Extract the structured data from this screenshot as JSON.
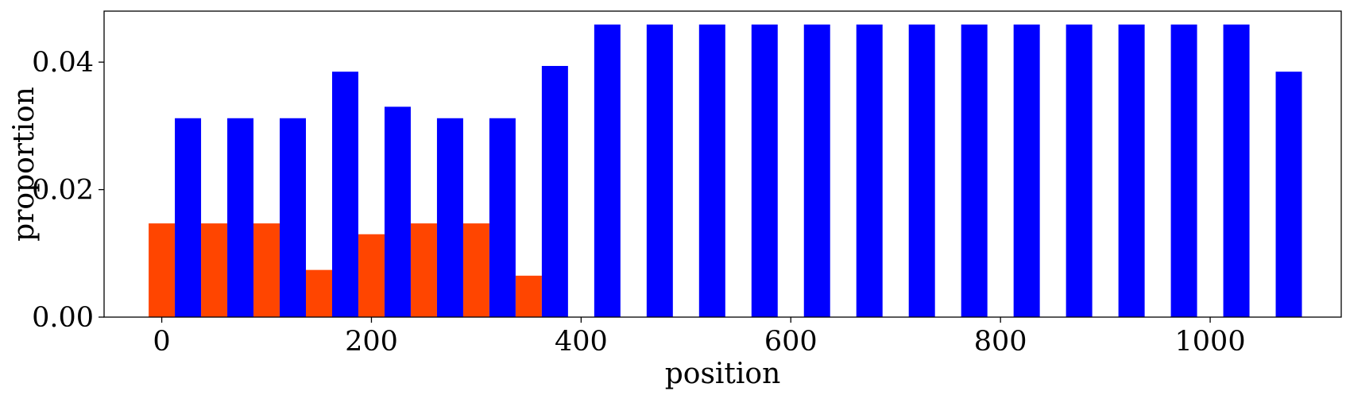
{
  "chart_data": {
    "type": "bar",
    "xlabel": "position",
    "ylabel": "proportion",
    "xlim": [
      -55,
      1125
    ],
    "ylim": [
      0,
      0.048
    ],
    "xticks": [
      0,
      200,
      400,
      600,
      800,
      1000
    ],
    "xtick_labels": [
      "0",
      "200",
      "400",
      "600",
      "800",
      "1000"
    ],
    "yticks": [
      0,
      0.02,
      0.04
    ],
    "ytick_labels": [
      "0.00",
      "0.02",
      "0.04"
    ],
    "bar_width": 25,
    "grid": false,
    "series": [
      {
        "color": "#ff4500",
        "x": [
          0,
          50,
          100,
          150,
          200,
          250,
          300,
          350
        ],
        "values": [
          0.0147,
          0.0147,
          0.0147,
          0.0074,
          0.013,
          0.0147,
          0.0147,
          0.0065
        ]
      },
      {
        "color": "#0000ff",
        "x": [
          25,
          75,
          125,
          175,
          225,
          275,
          325,
          375,
          425,
          475,
          525,
          575,
          625,
          675,
          725,
          775,
          825,
          875,
          925,
          975,
          1025,
          1075
        ],
        "values": [
          0.0312,
          0.0312,
          0.0312,
          0.0385,
          0.033,
          0.0312,
          0.0312,
          0.0394,
          0.0459,
          0.0459,
          0.0459,
          0.0459,
          0.0459,
          0.0459,
          0.0459,
          0.0459,
          0.0459,
          0.0459,
          0.0459,
          0.0459,
          0.0459,
          0.0385
        ]
      }
    ]
  }
}
